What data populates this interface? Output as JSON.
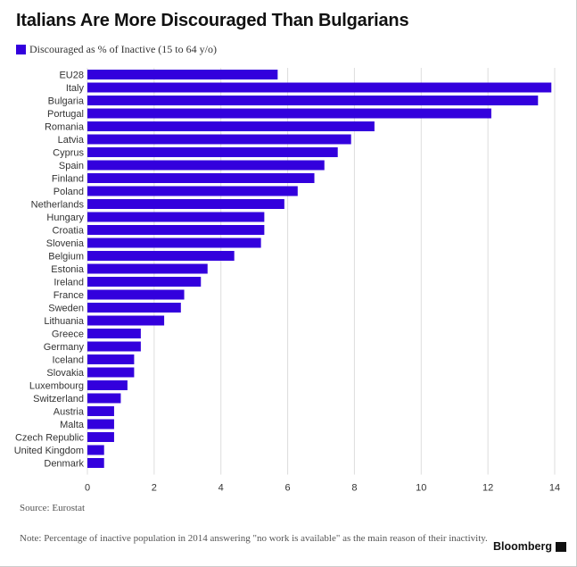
{
  "title": "Italians Are More Discouraged Than Bulgarians",
  "source": "Source: Eurostat",
  "note": "Note: Percentage of inactive population in 2014 answering \"no work is available\" as the main reason of their inactivity.",
  "brand": "Bloomberg",
  "colors": {
    "bar": "#3300dd",
    "grid": "#dddddd",
    "label": "#333333"
  },
  "chart_data": {
    "type": "bar",
    "orientation": "horizontal",
    "title": "Italians Are More Discouraged Than Bulgarians",
    "xlabel": "",
    "ylabel": "",
    "xlim": [
      0,
      14
    ],
    "xticks": [
      0,
      2,
      4,
      6,
      8,
      10,
      12,
      14
    ],
    "grid": true,
    "legend_position": "top-left",
    "categories": [
      "EU28",
      "Italy",
      "Bulgaria",
      "Portugal",
      "Romania",
      "Latvia",
      "Cyprus",
      "Spain",
      "Finland",
      "Poland",
      "Netherlands",
      "Hungary",
      "Croatia",
      "Slovenia",
      "Belgium",
      "Estonia",
      "Ireland",
      "France",
      "Sweden",
      "Lithuania",
      "Greece",
      "Germany",
      "Iceland",
      "Slovakia",
      "Luxembourg",
      "Switzerland",
      "Austria",
      "Malta",
      "Czech Republic",
      "United Kingdom",
      "Denmark"
    ],
    "series": [
      {
        "name": "Discouraged as % of Inactive (15 to 64 y/o)",
        "values": [
          5.7,
          13.9,
          13.5,
          12.1,
          8.6,
          7.9,
          7.5,
          7.1,
          6.8,
          6.3,
          5.9,
          5.3,
          5.3,
          5.2,
          4.4,
          3.6,
          3.4,
          2.9,
          2.8,
          2.3,
          1.6,
          1.6,
          1.4,
          1.4,
          1.2,
          1.0,
          0.8,
          0.8,
          0.8,
          0.5,
          0.5
        ]
      }
    ]
  }
}
